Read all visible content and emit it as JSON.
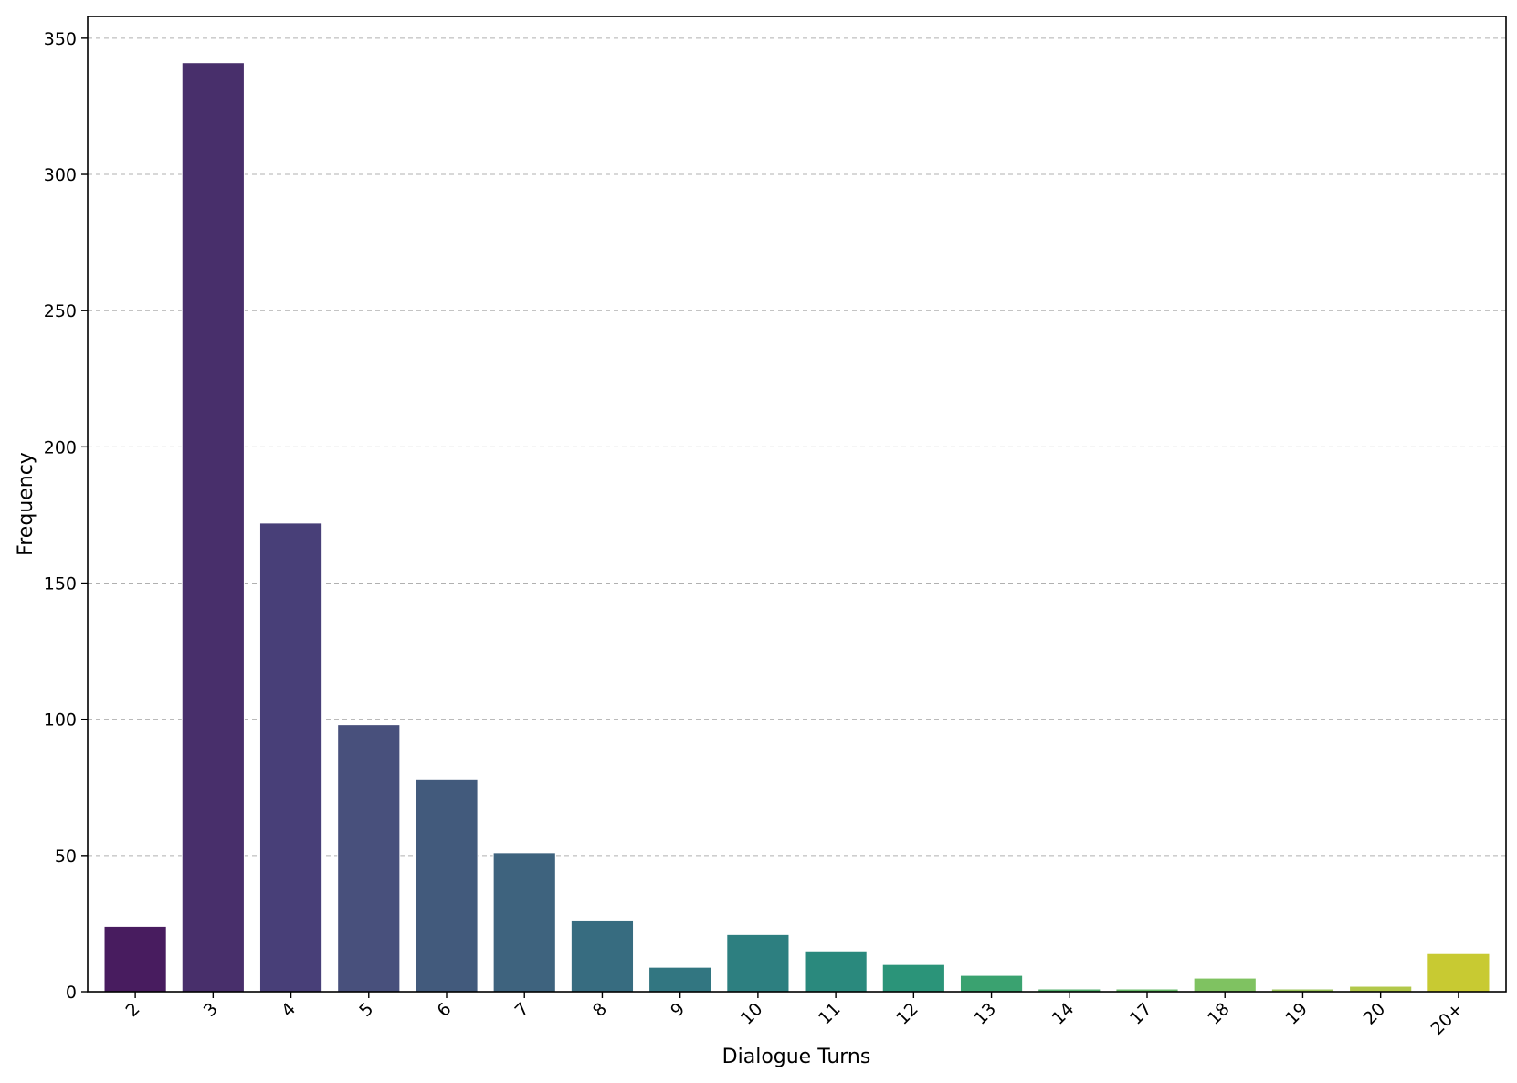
{
  "chart_data": {
    "type": "bar",
    "title": "",
    "xlabel": "Dialogue Turns",
    "ylabel": "Frequency",
    "categories": [
      "2",
      "3",
      "4",
      "5",
      "6",
      "7",
      "8",
      "9",
      "10",
      "11",
      "12",
      "13",
      "14",
      "17",
      "18",
      "19",
      "20",
      "20+"
    ],
    "values": [
      24,
      341,
      172,
      98,
      78,
      51,
      26,
      9,
      21,
      15,
      10,
      6,
      1,
      1,
      5,
      1,
      2,
      14
    ],
    "colors": [
      "#481c5f",
      "#482f6b",
      "#483f78",
      "#48507c",
      "#425a7c",
      "#3e637e",
      "#376c80",
      "#327681",
      "#2d7f80",
      "#2a897d",
      "#2b9479",
      "#3aa270",
      "#52b06c",
      "#67ba68",
      "#7fc261",
      "#9ac45a",
      "#b2c84a",
      "#c8ca32"
    ],
    "ylim": [
      0,
      358
    ],
    "yticks": [
      0,
      50,
      100,
      150,
      200,
      250,
      300,
      350
    ],
    "grid": "y-dashed",
    "legend": "none"
  }
}
